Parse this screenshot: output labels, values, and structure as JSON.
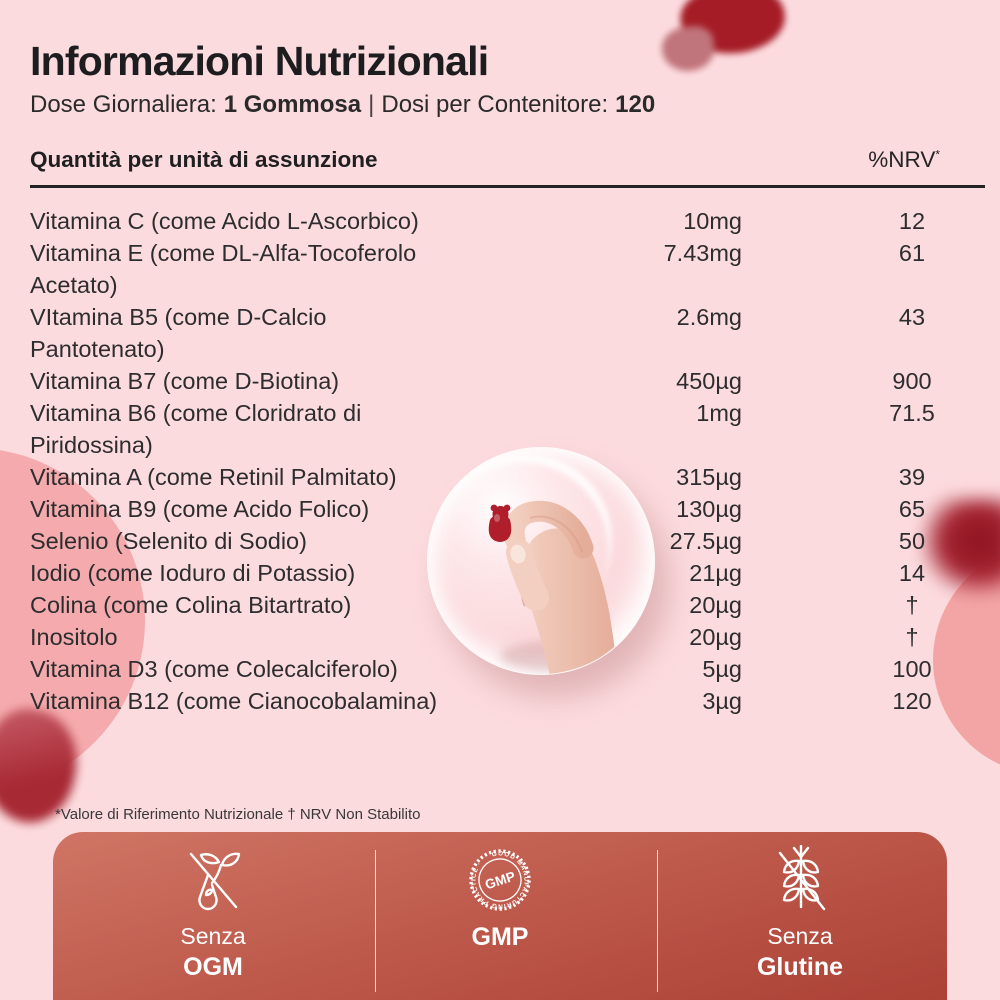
{
  "page": {
    "title": "Informazioni Nutrizionali",
    "subtitle": {
      "dose_label": "Dose Giornaliera:",
      "dose_value": "1 Gommosa",
      "separator": "|",
      "servings_label": "Dosi per Contenitore:",
      "servings_value": "120"
    }
  },
  "table": {
    "header_left": "Quantità per unità di assunzione",
    "header_right": "%NRV",
    "header_right_mark": "*",
    "rows": [
      {
        "name_lines": [
          "Vitamina C (come Acido L-Ascorbico)"
        ],
        "amount": "10mg",
        "nrv": "12"
      },
      {
        "name_lines": [
          "Vitamina E (come DL-Alfa-Tocoferolo",
          "Acetato)"
        ],
        "amount": "7.43mg",
        "nrv": "61"
      },
      {
        "name_lines": [
          "VItamina B5 (come D-Calcio",
          "Pantotenato)"
        ],
        "amount": "2.6mg",
        "nrv": "43"
      },
      {
        "name_lines": [
          "Vitamina B7 (come D-Biotina)"
        ],
        "amount": "450µg",
        "nrv": "900"
      },
      {
        "name_lines": [
          "Vitamina B6 (come Cloridrato di",
          "Piridossina)"
        ],
        "amount": "1mg",
        "nrv": "71.5"
      },
      {
        "name_lines": [
          "Vitamina A (come Retinil Palmitato)"
        ],
        "amount": "315µg",
        "nrv": "39"
      },
      {
        "name_lines": [
          "Vitamina B9 (come Acido Folico)"
        ],
        "amount": "130µg",
        "nrv": "65"
      },
      {
        "name_lines": [
          "Selenio (Selenito di Sodio)"
        ],
        "amount": "27.5µg",
        "nrv": "50"
      },
      {
        "name_lines": [
          "Iodio (come Ioduro di Potassio)"
        ],
        "amount": "21µg",
        "nrv": "14"
      },
      {
        "name_lines": [
          "Colina (come Colina Bitartrato)"
        ],
        "amount": "20µg",
        "nrv": "†"
      },
      {
        "name_lines": [
          "Inositolo"
        ],
        "amount": "20µg",
        "nrv": "†"
      },
      {
        "name_lines": [
          "Vitamina D3 (come Colecalciferolo)"
        ],
        "amount": "5µg",
        "nrv": "100"
      },
      {
        "name_lines": [
          "Vitamina B12 (come Cianocobalamina)"
        ],
        "amount": "3µg",
        "nrv": "120"
      }
    ]
  },
  "footnote": "*Valore di Riferimento Nutrizionale † NRV Non Stabilito",
  "badges": [
    {
      "icon": "no-gmo-icon",
      "line1": "Senza",
      "line2": "OGM"
    },
    {
      "icon": "gmp-seal-icon",
      "line1": "GMP",
      "line2": ""
    },
    {
      "icon": "gluten-free-icon",
      "line1": "Senza",
      "line2": "Glutine"
    }
  ],
  "gmp_seal": {
    "center": "GMP",
    "ring_text": "GOOD MANUFACTURING PRACTICE ·"
  },
  "colors": {
    "background": "#fcdbde",
    "accent_circle": "#f5abad",
    "gummy_red": "#a51c26",
    "card_top": "#d07565",
    "card_bottom": "#ac4136",
    "text_dark": "#1d1d1f",
    "rule": "#232323",
    "badge_text": "#ffffff"
  }
}
